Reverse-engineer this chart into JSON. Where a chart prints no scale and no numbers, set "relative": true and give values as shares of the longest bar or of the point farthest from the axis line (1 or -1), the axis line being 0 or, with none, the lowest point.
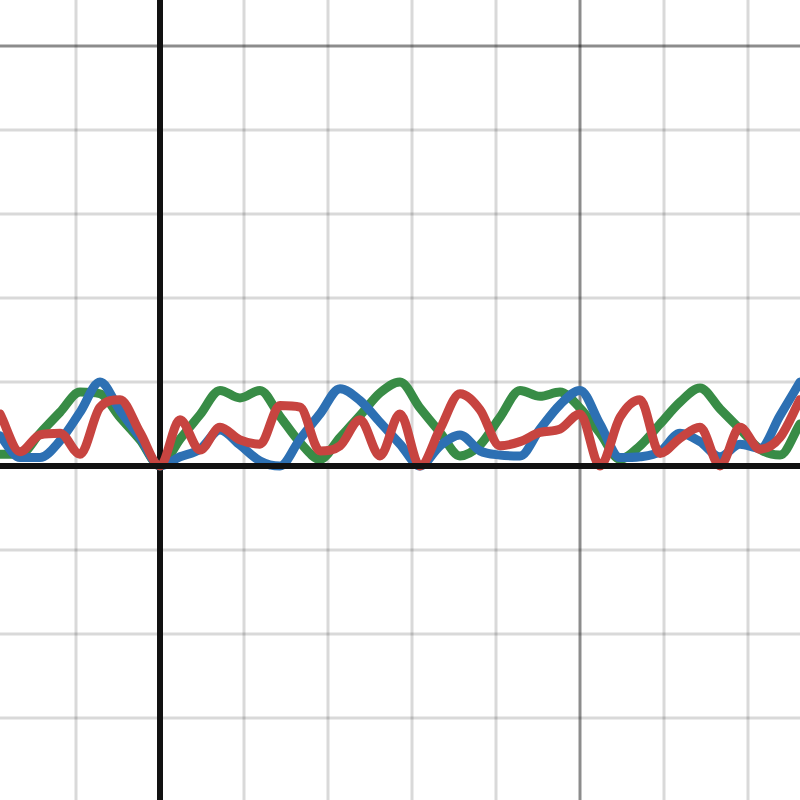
{
  "chart_data": {
    "type": "line",
    "relative": true,
    "grid": true,
    "legend": false,
    "marker": "none",
    "line_style": "solid",
    "categories": [
      null,
      null,
      null,
      null,
      null,
      null,
      null,
      null,
      null,
      null,
      null,
      null,
      null,
      null,
      null,
      null,
      null,
      null,
      null,
      null,
      null,
      null,
      null,
      null,
      null,
      null,
      null,
      null,
      null,
      null,
      null,
      null,
      null,
      null,
      null,
      null,
      null,
      null,
      null,
      null,
      null
    ],
    "series": [
      {
        "color": "#c74440",
        "values": [
          0.62,
          0.17,
          0.37,
          0.39,
          0.14,
          0.7,
          0.79,
          0.4,
          0,
          0.55,
          0.19,
          0.46,
          0.31,
          0.26,
          0.72,
          0.7,
          0.18,
          0.24,
          0.55,
          0.12,
          0.62,
          0,
          0.44,
          0.86,
          0.67,
          0.24,
          0.29,
          0.4,
          0.44,
          0.62,
          0,
          0.58,
          0.79,
          0.15,
          0.33,
          0.46,
          0,
          0.46,
          0.2,
          0.34,
          0.79
        ]
      },
      {
        "color": "#2d70b3",
        "values": [
          0.36,
          0.1,
          0.1,
          0.3,
          0.64,
          1,
          0.66,
          0.34,
          0,
          0.11,
          0.2,
          0.43,
          0.25,
          0.06,
          0,
          0.32,
          0.62,
          0.92,
          0.78,
          0.52,
          0.26,
          0,
          0.24,
          0.37,
          0.18,
          0.13,
          0.12,
          0.44,
          0.73,
          0.9,
          0.5,
          0.1,
          0.11,
          0.17,
          0.39,
          0.29,
          0.11,
          0.26,
          0.21,
          0.6,
          1
        ]
      },
      {
        "color": "#388c46",
        "values": [
          0.14,
          0.14,
          0.39,
          0.64,
          0.88,
          0.86,
          0.58,
          0.31,
          0,
          0.32,
          0.61,
          0.9,
          0.81,
          0.9,
          0.59,
          0.28,
          0.08,
          0.34,
          0.6,
          0.87,
          1,
          0.69,
          0.4,
          0.12,
          0.25,
          0.58,
          0.9,
          0.83,
          0.88,
          0.69,
          0.39,
          0.08,
          0.24,
          0.5,
          0.76,
          0.93,
          0.68,
          0.44,
          0.2,
          0.13,
          0.5
        ]
      }
    ]
  }
}
